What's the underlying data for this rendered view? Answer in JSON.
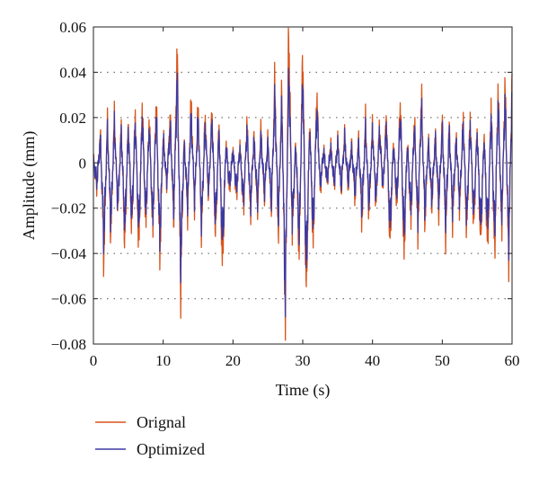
{
  "chart_data": {
    "type": "line",
    "title": "",
    "xlabel": "Time (s)",
    "ylabel": "Amplitude (mm)",
    "xlim": [
      0,
      60
    ],
    "ylim": [
      -0.08,
      0.06
    ],
    "xticks": [
      0,
      10,
      20,
      30,
      40,
      50,
      60
    ],
    "xtick_labels": [
      "0",
      "10",
      "20",
      "30",
      "40",
      "50",
      "60"
    ],
    "yticks": [
      0.06,
      0.04,
      0.02,
      0,
      -0.02,
      -0.04,
      -0.06,
      -0.08
    ],
    "ytick_labels": [
      "0.06",
      "0.04",
      "0.02",
      "0",
      "−0.02",
      "−0.04",
      "−0.06",
      "−0.08"
    ],
    "grid": "horizontal dotted",
    "legend_position": "bottom-left, below plot",
    "series": [
      {
        "name": "Orignal",
        "color": "#d9541a",
        "x": [
          0,
          0.5,
          1,
          1.5,
          2,
          2.5,
          3,
          3.5,
          4,
          4.5,
          5,
          5.5,
          6,
          6.5,
          7,
          7.5,
          8,
          8.5,
          9,
          9.5,
          10,
          10.5,
          11,
          11.5,
          12,
          12.5,
          13,
          13.5,
          14,
          14.5,
          15,
          15.5,
          16,
          16.5,
          17,
          17.5,
          18,
          18.5,
          19,
          19.5,
          20,
          20.5,
          21,
          21.5,
          22,
          22.5,
          23,
          23.5,
          24,
          24.5,
          25,
          25.5,
          26,
          26.5,
          27,
          27.5,
          28,
          28.5,
          29,
          29.5,
          30,
          30.5,
          31,
          31.5,
          32,
          32.5,
          33,
          33.5,
          34,
          34.5,
          35,
          35.5,
          36,
          36.5,
          37,
          37.5,
          38,
          38.5,
          39,
          39.5,
          40,
          40.5,
          41,
          41.5,
          42,
          42.5,
          43,
          43.5,
          44,
          44.5,
          45,
          45.5,
          46,
          46.5,
          47,
          47.5,
          48,
          48.5,
          49,
          49.5,
          50,
          50.5,
          51,
          51.5,
          52,
          52.5,
          53,
          53.5,
          54,
          54.5,
          55,
          55.5,
          56,
          56.5,
          57,
          57.5,
          58,
          58.5,
          59,
          59.5,
          60
        ],
        "y": [
          0.002,
          -0.01,
          0.012,
          -0.04,
          0.018,
          -0.03,
          0.02,
          -0.02,
          0.016,
          -0.035,
          0.018,
          -0.03,
          0.022,
          -0.038,
          0.026,
          -0.028,
          0.02,
          -0.03,
          0.028,
          -0.04,
          0.012,
          -0.01,
          0.02,
          -0.025,
          0.047,
          -0.052,
          0.01,
          -0.02,
          0.026,
          -0.018,
          0.024,
          -0.03,
          0.02,
          -0.015,
          0.022,
          -0.032,
          0.018,
          -0.045,
          0.01,
          -0.012,
          0.006,
          -0.014,
          0.008,
          -0.02,
          0.018,
          -0.022,
          0.012,
          -0.02,
          0.014,
          -0.015,
          0.01,
          -0.02,
          0.034,
          -0.03,
          0.03,
          -0.066,
          0.057,
          -0.03,
          0.01,
          -0.04,
          0.05,
          -0.058,
          0.02,
          -0.036,
          0.03,
          -0.012,
          0.006,
          -0.008,
          0.008,
          -0.01,
          0.01,
          -0.012,
          0.012,
          -0.01,
          0.008,
          -0.015,
          0.01,
          -0.025,
          0.018,
          -0.022,
          0.016,
          -0.018,
          0.016,
          -0.012,
          0.02,
          -0.035,
          0.01,
          -0.02,
          0.028,
          -0.04,
          0.01,
          -0.025,
          0.02,
          -0.03,
          0.03,
          -0.025,
          0.01,
          -0.018,
          0.012,
          -0.02,
          0.018,
          -0.03,
          0.016,
          -0.025,
          0.012,
          -0.02,
          0.02,
          -0.03,
          0.02,
          -0.028,
          0.016,
          -0.035,
          0.014,
          -0.038,
          0.026,
          -0.04,
          0.032,
          -0.03,
          0.035,
          -0.042,
          0.036
        ]
      },
      {
        "name": "Optimized",
        "color": "#3b3aa3",
        "x": [
          0,
          0.5,
          1,
          1.5,
          2,
          2.5,
          3,
          3.5,
          4,
          4.5,
          5,
          5.5,
          6,
          6.5,
          7,
          7.5,
          8,
          8.5,
          9,
          9.5,
          10,
          10.5,
          11,
          11.5,
          12,
          12.5,
          13,
          13.5,
          14,
          14.5,
          15,
          15.5,
          16,
          16.5,
          17,
          17.5,
          18,
          18.5,
          19,
          19.5,
          20,
          20.5,
          21,
          21.5,
          22,
          22.5,
          23,
          23.5,
          24,
          24.5,
          25,
          25.5,
          26,
          26.5,
          27,
          27.5,
          28,
          28.5,
          29,
          29.5,
          30,
          30.5,
          31,
          31.5,
          32,
          32.5,
          33,
          33.5,
          34,
          34.5,
          35,
          35.5,
          36,
          36.5,
          37,
          37.5,
          38,
          38.5,
          39,
          39.5,
          40,
          40.5,
          41,
          41.5,
          42,
          42.5,
          43,
          43.5,
          44,
          44.5,
          45,
          45.5,
          46,
          46.5,
          47,
          47.5,
          48,
          48.5,
          49,
          49.5,
          50,
          50.5,
          51,
          51.5,
          52,
          52.5,
          53,
          53.5,
          54,
          54.5,
          55,
          55.5,
          56,
          56.5,
          57,
          57.5,
          58,
          58.5,
          59,
          59.5,
          60
        ],
        "y": [
          0.001,
          -0.008,
          0.01,
          -0.032,
          0.014,
          -0.025,
          0.016,
          -0.018,
          0.013,
          -0.028,
          0.015,
          -0.025,
          0.018,
          -0.03,
          0.021,
          -0.023,
          0.016,
          -0.025,
          0.022,
          -0.032,
          0.01,
          -0.008,
          0.016,
          -0.02,
          0.036,
          -0.042,
          0.008,
          -0.016,
          0.02,
          -0.015,
          0.019,
          -0.025,
          0.016,
          -0.012,
          0.018,
          -0.026,
          0.014,
          -0.036,
          0.008,
          -0.01,
          0.005,
          -0.011,
          0.006,
          -0.016,
          0.014,
          -0.018,
          0.01,
          -0.016,
          0.011,
          -0.012,
          0.008,
          -0.016,
          0.027,
          -0.024,
          0.024,
          -0.057,
          0.04,
          -0.025,
          0.008,
          -0.032,
          0.038,
          -0.048,
          0.016,
          -0.03,
          0.024,
          -0.01,
          0.005,
          -0.007,
          0.006,
          -0.008,
          0.008,
          -0.01,
          0.01,
          -0.008,
          0.006,
          -0.012,
          0.008,
          -0.02,
          0.014,
          -0.018,
          0.013,
          -0.015,
          0.013,
          -0.01,
          0.016,
          -0.028,
          0.008,
          -0.016,
          0.022,
          -0.032,
          0.008,
          -0.02,
          0.016,
          -0.024,
          0.024,
          -0.02,
          0.008,
          -0.015,
          0.01,
          -0.016,
          0.014,
          -0.024,
          0.013,
          -0.02,
          0.01,
          -0.016,
          0.016,
          -0.024,
          0.016,
          -0.022,
          0.013,
          -0.028,
          0.011,
          -0.03,
          0.021,
          -0.032,
          0.026,
          -0.024,
          0.028,
          -0.034,
          0.03
        ]
      }
    ]
  }
}
